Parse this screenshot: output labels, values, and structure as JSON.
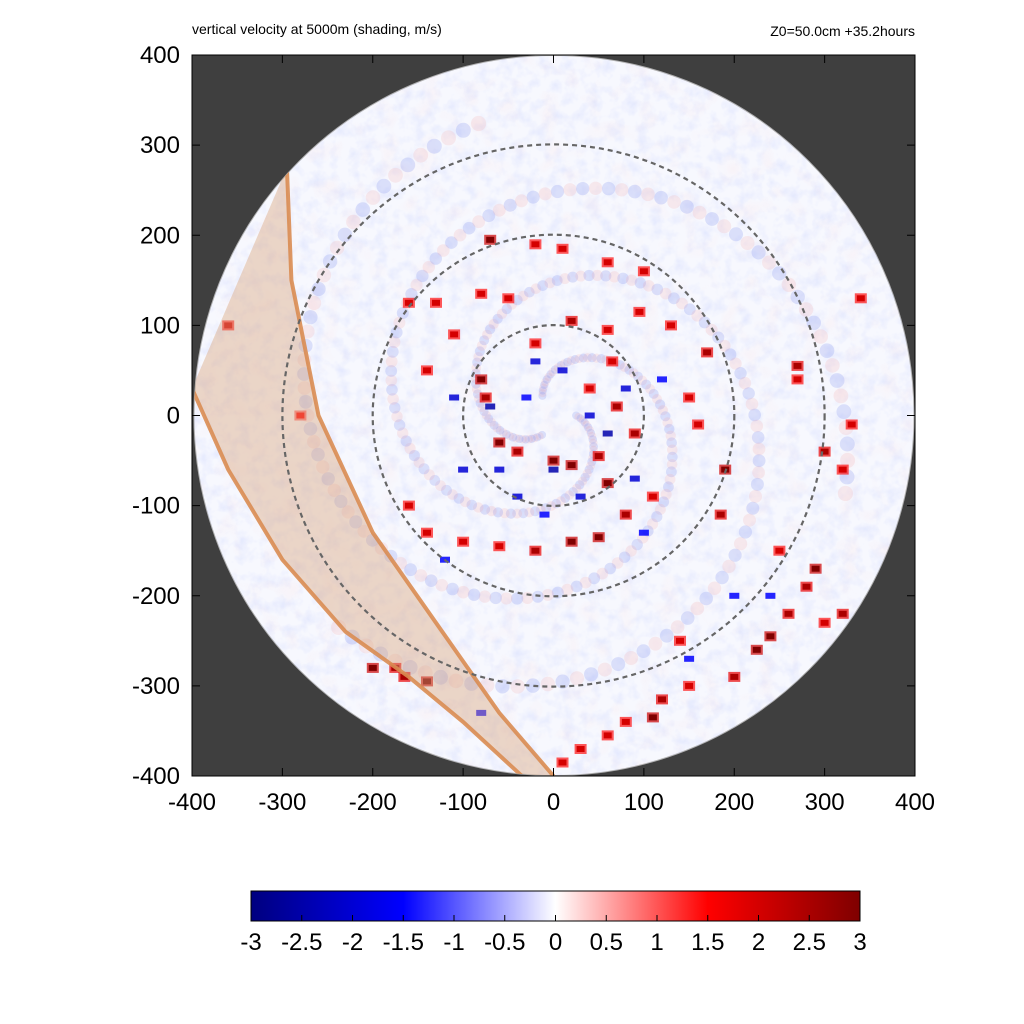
{
  "chart_data": {
    "type": "heatmap",
    "title": "vertical velocity at 5000m (shading, m/s)",
    "subtitle": "Z0=50.0cm  +35.2hours",
    "xlabel": "",
    "ylabel": "",
    "xlim": [
      -400,
      400
    ],
    "ylim": [
      -400,
      400
    ],
    "x_ticks": [
      -400,
      -300,
      -200,
      -100,
      0,
      100,
      200,
      300,
      400
    ],
    "y_ticks": [
      -400,
      -300,
      -200,
      -100,
      0,
      100,
      200,
      300,
      400
    ],
    "x_tick_labels": [
      "-400",
      "-300",
      "-200",
      "-100",
      "0",
      "100",
      "200",
      "300",
      "400"
    ],
    "y_tick_labels": [
      "-400",
      "-300",
      "-200",
      "-100",
      "0",
      "100",
      "200",
      "300",
      "400"
    ],
    "domain_radius": 400,
    "range_rings": [
      100,
      200,
      300
    ],
    "colorbar": {
      "min": -3,
      "max": 3,
      "ticks": [
        -3,
        -2.5,
        -2,
        -1.5,
        -1,
        -0.5,
        0,
        0.5,
        1,
        1.5,
        2,
        2.5,
        3
      ],
      "tick_labels": [
        "-3",
        "-2.5",
        "-2",
        "-1.5",
        "-1",
        "-0.5",
        "0",
        "0.5",
        "1",
        "1.5",
        "2",
        "2.5",
        "3"
      ],
      "colors": [
        "#00007f",
        "#0000ff",
        "#ffffff",
        "#ff0000",
        "#7f0000"
      ]
    },
    "band": {
      "outer_edge": [
        [
          -295,
          275
        ],
        [
          -290,
          150
        ],
        [
          -260,
          0
        ],
        [
          -200,
          -130
        ],
        [
          -130,
          -230
        ],
        [
          -60,
          -330
        ],
        [
          0,
          -400
        ]
      ],
      "inner_edge": [
        [
          -400,
          30
        ],
        [
          -360,
          -60
        ],
        [
          -300,
          -160
        ],
        [
          -230,
          -240
        ],
        [
          -160,
          -290
        ],
        [
          -100,
          -340
        ],
        [
          -35,
          -400
        ]
      ],
      "color": "#e0a070"
    },
    "updraft_cells": [
      [
        -80,
        40,
        3
      ],
      [
        -75,
        20,
        2.5
      ],
      [
        -60,
        -30,
        3
      ],
      [
        -40,
        -40,
        2.5
      ],
      [
        0,
        -50,
        3
      ],
      [
        20,
        -55,
        3
      ],
      [
        50,
        -45,
        2.5
      ],
      [
        60,
        -75,
        3
      ],
      [
        70,
        10,
        2.5
      ],
      [
        40,
        30,
        2
      ],
      [
        65,
        60,
        2
      ],
      [
        90,
        -20,
        2.5
      ],
      [
        -20,
        80,
        2
      ],
      [
        20,
        105,
        2.5
      ],
      [
        60,
        95,
        2
      ],
      [
        95,
        115,
        2
      ],
      [
        130,
        100,
        2
      ],
      [
        170,
        70,
        2.5
      ],
      [
        150,
        20,
        2
      ],
      [
        160,
        -10,
        2
      ],
      [
        190,
        -60,
        3
      ],
      [
        185,
        -110,
        2.5
      ],
      [
        -50,
        130,
        2
      ],
      [
        -80,
        135,
        2
      ],
      [
        -130,
        125,
        2
      ],
      [
        -160,
        125,
        2
      ],
      [
        -20,
        190,
        2
      ],
      [
        10,
        185,
        2
      ],
      [
        60,
        170,
        2
      ],
      [
        100,
        160,
        2
      ],
      [
        -110,
        90,
        2
      ],
      [
        -140,
        50,
        2
      ],
      [
        -160,
        -100,
        2
      ],
      [
        -140,
        -130,
        2
      ],
      [
        -100,
        -140,
        2
      ],
      [
        -60,
        -145,
        2
      ],
      [
        -20,
        -150,
        2.5
      ],
      [
        20,
        -140,
        3
      ],
      [
        50,
        -135,
        3
      ],
      [
        80,
        -110,
        2.5
      ],
      [
        110,
        -90,
        2
      ],
      [
        -70,
        195,
        3
      ],
      [
        -200,
        -280,
        3
      ],
      [
        -165,
        -290,
        2.5
      ],
      [
        -140,
        -295,
        3
      ],
      [
        -175,
        -280,
        2.5
      ],
      [
        290,
        -170,
        3
      ],
      [
        280,
        -190,
        2.5
      ],
      [
        260,
        -220,
        2.5
      ],
      [
        240,
        -245,
        3
      ],
      [
        225,
        -260,
        3
      ],
      [
        200,
        -290,
        2.5
      ],
      [
        150,
        -300,
        2
      ],
      [
        120,
        -315,
        2.5
      ],
      [
        110,
        -335,
        3
      ],
      [
        80,
        -340,
        2
      ],
      [
        60,
        -355,
        2
      ],
      [
        30,
        -370,
        2
      ],
      [
        10,
        -385,
        2
      ],
      [
        320,
        -220,
        2.5
      ],
      [
        300,
        -230,
        2
      ],
      [
        270,
        40,
        2
      ],
      [
        300,
        -40,
        2.5
      ],
      [
        320,
        -60,
        2
      ],
      [
        330,
        -10,
        2
      ],
      [
        340,
        130,
        2
      ],
      [
        270,
        55,
        2.5
      ],
      [
        -360,
        100,
        2
      ],
      [
        -280,
        0,
        1.5
      ],
      [
        250,
        -150,
        2
      ],
      [
        140,
        -250,
        2
      ]
    ],
    "downdraft_cells": [
      [
        -70,
        10,
        -2.5
      ],
      [
        -60,
        -60,
        -2
      ],
      [
        0,
        -60,
        -2.5
      ],
      [
        40,
        0,
        -2
      ],
      [
        -20,
        60,
        -2
      ],
      [
        60,
        -20,
        -2.5
      ],
      [
        80,
        30,
        -2
      ],
      [
        -100,
        -60,
        -2
      ],
      [
        -40,
        -90,
        -2
      ],
      [
        30,
        -90,
        -2
      ],
      [
        90,
        -70,
        -2
      ],
      [
        -110,
        20,
        -2
      ],
      [
        10,
        50,
        -2
      ],
      [
        -30,
        20,
        -1.5
      ],
      [
        120,
        40,
        -1.5
      ],
      [
        -10,
        -110,
        -1.5
      ],
      [
        100,
        -130,
        -1.5
      ],
      [
        -120,
        -160,
        -1.5
      ],
      [
        200,
        -200,
        -1.5
      ],
      [
        150,
        -270,
        -1.5
      ],
      [
        240,
        -200,
        -1.5
      ],
      [
        -80,
        -330,
        -1.5
      ]
    ]
  }
}
